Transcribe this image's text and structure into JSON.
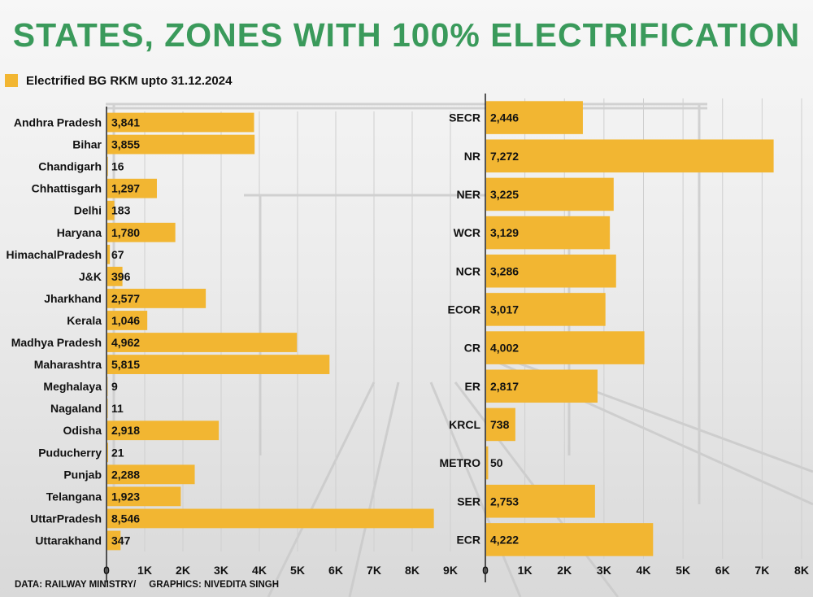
{
  "title": "STATES, ZONES WITH 100% ELECTRIFICATION",
  "legend": {
    "label": "Electrified BG RKM upto 31.12.2024"
  },
  "source_text": "DATA: RAILWAY MINISTRY/     GRAPHICS: NIVEDITA SINGH",
  "colors": {
    "bar": "#f2b632",
    "title": "#3a9a5b",
    "gridline": "#cfcfcf",
    "axis": "#222222"
  },
  "chart_data": [
    {
      "type": "bar",
      "orientation": "horizontal",
      "categories": [
        "Andhra Pradesh",
        "Bihar",
        "Chandigarh",
        "Chhattisgarh",
        "Delhi",
        "Haryana",
        "HimachalPradesh",
        "J&K",
        "Jharkhand",
        "Kerala",
        "Madhya Pradesh",
        "Maharashtra",
        "Meghalaya",
        "Nagaland",
        "Odisha",
        "Puducherry",
        "Punjab",
        "Telangana",
        "UttarPradesh",
        "Uttarakhand"
      ],
      "values": [
        3841,
        3855,
        16,
        1297,
        183,
        1780,
        67,
        396,
        2577,
        1046,
        4962,
        5815,
        9,
        11,
        2918,
        21,
        2288,
        1923,
        8546,
        347
      ],
      "value_labels": [
        "3,841",
        "3,855",
        "16",
        "1,297",
        "183",
        "1,780",
        "67",
        "396",
        "2,577",
        "1,046",
        "4,962",
        "5,815",
        "9",
        "11",
        "2,918",
        "21",
        "2,288",
        "1,923",
        "8,546",
        "347"
      ],
      "ticks": [
        "0",
        "1K",
        "2K",
        "3K",
        "4K",
        "5K",
        "6K",
        "7K",
        "8K",
        "9K"
      ],
      "xlim": [
        0,
        9000
      ],
      "grid": true
    },
    {
      "type": "bar",
      "orientation": "horizontal",
      "categories": [
        "SECR",
        "NR",
        "NER",
        "WCR",
        "NCR",
        "ECOR",
        "CR",
        "ER",
        "KRCL",
        "METRO",
        "SER",
        "ECR"
      ],
      "values": [
        2446,
        7272,
        3225,
        3129,
        3286,
        3017,
        4002,
        2817,
        738,
        50,
        2753,
        4222
      ],
      "value_labels": [
        "2,446",
        "7,272",
        "3,225",
        "3,129",
        "3,286",
        "3,017",
        "4,002",
        "2,817",
        "738",
        "50",
        "2,753",
        "4,222"
      ],
      "ticks": [
        "0",
        "1K",
        "2K",
        "3K",
        "4K",
        "5K",
        "6K",
        "7K",
        "8K"
      ],
      "xlim": [
        0,
        8000
      ],
      "grid": true
    }
  ]
}
